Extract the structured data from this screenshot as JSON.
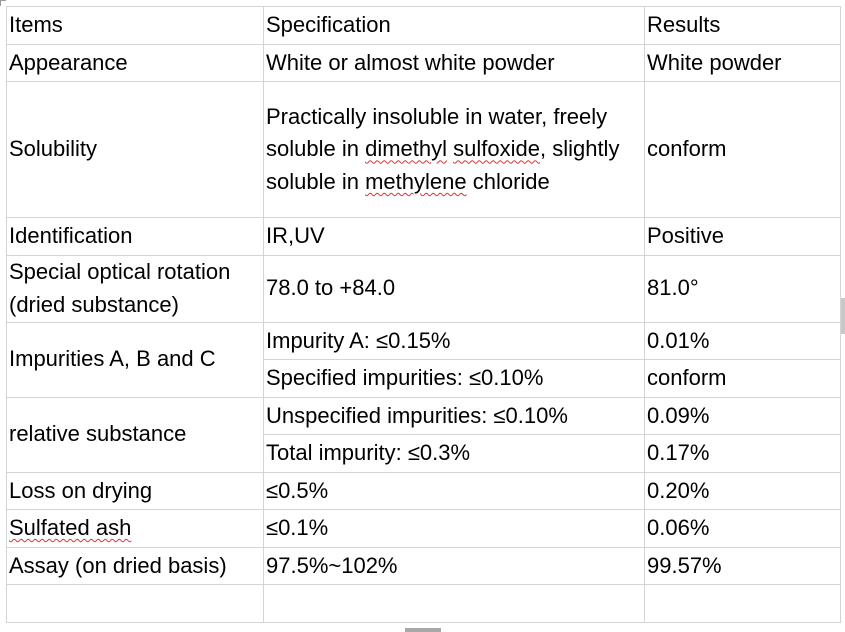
{
  "table": {
    "headers": [
      "Items",
      "Specification",
      "Results"
    ],
    "appearance": {
      "item": "Appearance",
      "spec": "White or almost white powder",
      "result": "White powder"
    },
    "solubility": {
      "item": "Solubility",
      "spec_parts": [
        "Practically insoluble in water, freely soluble in ",
        "dimethyl",
        " ",
        "sulfoxide",
        ", slightly soluble in ",
        "methylene",
        " chloride"
      ],
      "result": "conform"
    },
    "identification": {
      "item": "Identification",
      "spec": "IR,UV",
      "result": "Positive"
    },
    "optical_rotation": {
      "item_line1": "Special optical rotation",
      "item_line2": "(dried substance)",
      "spec": "78.0 to +84.0",
      "result": "81.0°"
    },
    "impurities_abc": {
      "item": "Impurities A, B and C",
      "rows": [
        {
          "spec": "Impurity A: ≤0.15%",
          "result": "0.01%"
        },
        {
          "spec": "Specified impurities: ≤0.10%",
          "result": "conform"
        }
      ]
    },
    "relative_substance": {
      "item": "relative substance",
      "rows": [
        {
          "spec": "Unspecified impurities: ≤0.10%",
          "result": "0.09%"
        },
        {
          "spec": "Total impurity: ≤0.3%",
          "result": "0.17%"
        }
      ]
    },
    "loss_on_drying": {
      "item": "Loss on drying",
      "spec": "≤0.5%",
      "result": "0.20%"
    },
    "sulfated_ash": {
      "item": "Sulfated ash",
      "spec": "≤0.1%",
      "result": "0.06%"
    },
    "assay": {
      "item": "Assay (on dried basis)",
      "spec": "97.5%~102%",
      "result": "99.57%"
    },
    "empty_row": {
      "item": "",
      "spec": "",
      "result": ""
    }
  }
}
